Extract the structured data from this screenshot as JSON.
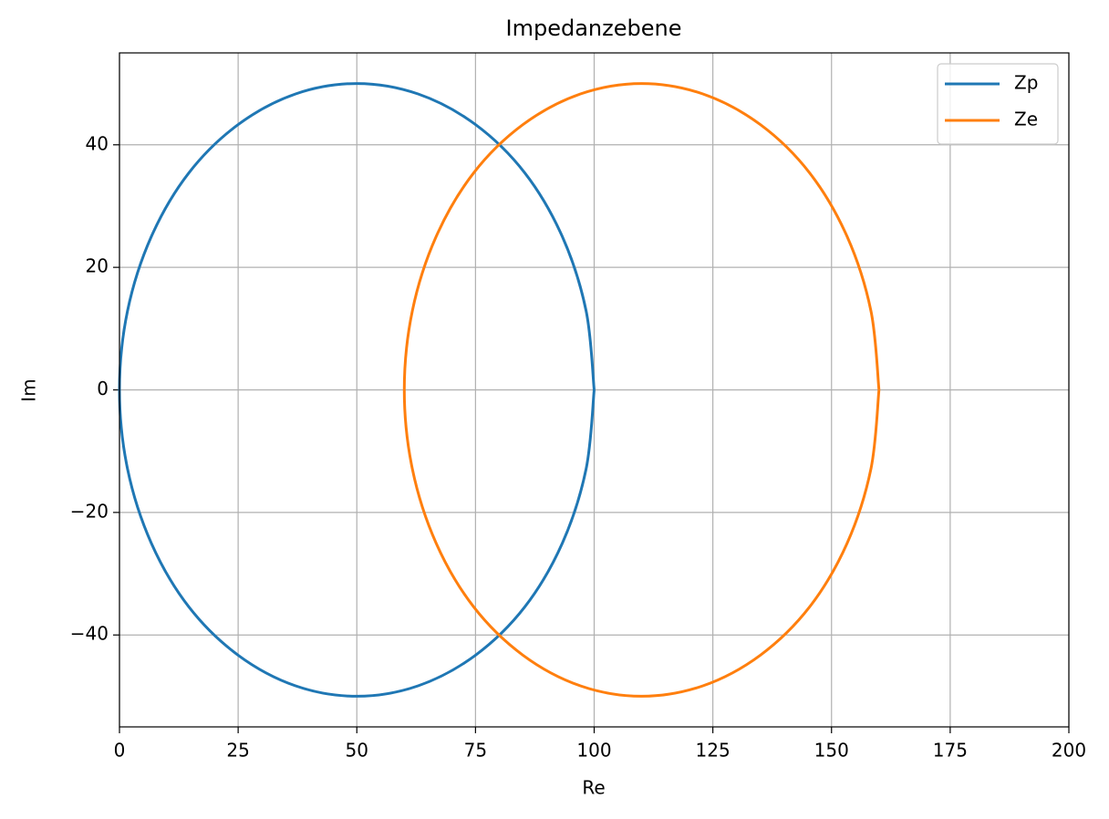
{
  "chart_data": {
    "type": "line",
    "title": "Impedanzebene",
    "x_label": "Re",
    "y_label": "Im",
    "series": [
      {
        "name": "Zp",
        "color": "#1f77b4",
        "x": [
          100,
          98.3,
          93.3,
          85.4,
          75,
          62.9,
          50,
          37.1,
          25,
          14.6,
          6.7,
          1.7,
          0,
          1.7,
          6.7,
          14.6,
          25,
          37.1,
          50,
          62.9,
          75,
          85.4,
          93.3,
          98.3,
          100
        ],
        "values": [
          0,
          12.9,
          25,
          35.4,
          43.3,
          48.3,
          50,
          48.3,
          43.3,
          35.4,
          25,
          12.9,
          0,
          -12.9,
          -25,
          -35.4,
          -43.3,
          -48.3,
          -50,
          -48.3,
          -43.3,
          -35.4,
          -25,
          -12.9,
          0
        ]
      },
      {
        "name": "Ze",
        "color": "#ff7f0e",
        "x": [
          160,
          158.3,
          153.3,
          145.4,
          135,
          122.9,
          110,
          97.1,
          85,
          74.6,
          66.7,
          61.7,
          60,
          61.7,
          66.7,
          74.6,
          85,
          97.1,
          110,
          122.9,
          135,
          145.4,
          153.3,
          158.3,
          160
        ],
        "values": [
          0,
          12.9,
          25,
          35.4,
          43.3,
          48.3,
          50,
          48.3,
          43.3,
          35.4,
          25,
          12.9,
          0,
          -12.9,
          -25,
          -35.4,
          -43.3,
          -48.3,
          -50,
          -48.3,
          -43.3,
          -35.4,
          -25,
          -12.9,
          0
        ]
      }
    ],
    "xlim": [
      0,
      200
    ],
    "xticks": [
      0,
      25,
      50,
      75,
      100,
      125,
      150,
      175,
      200
    ],
    "ylim": [
      -55,
      55
    ],
    "yticks": [
      {
        "value": -40,
        "label": "−40"
      },
      {
        "value": -20,
        "label": "−20"
      },
      0,
      20,
      40
    ],
    "grid": true,
    "legend": "upper right"
  }
}
